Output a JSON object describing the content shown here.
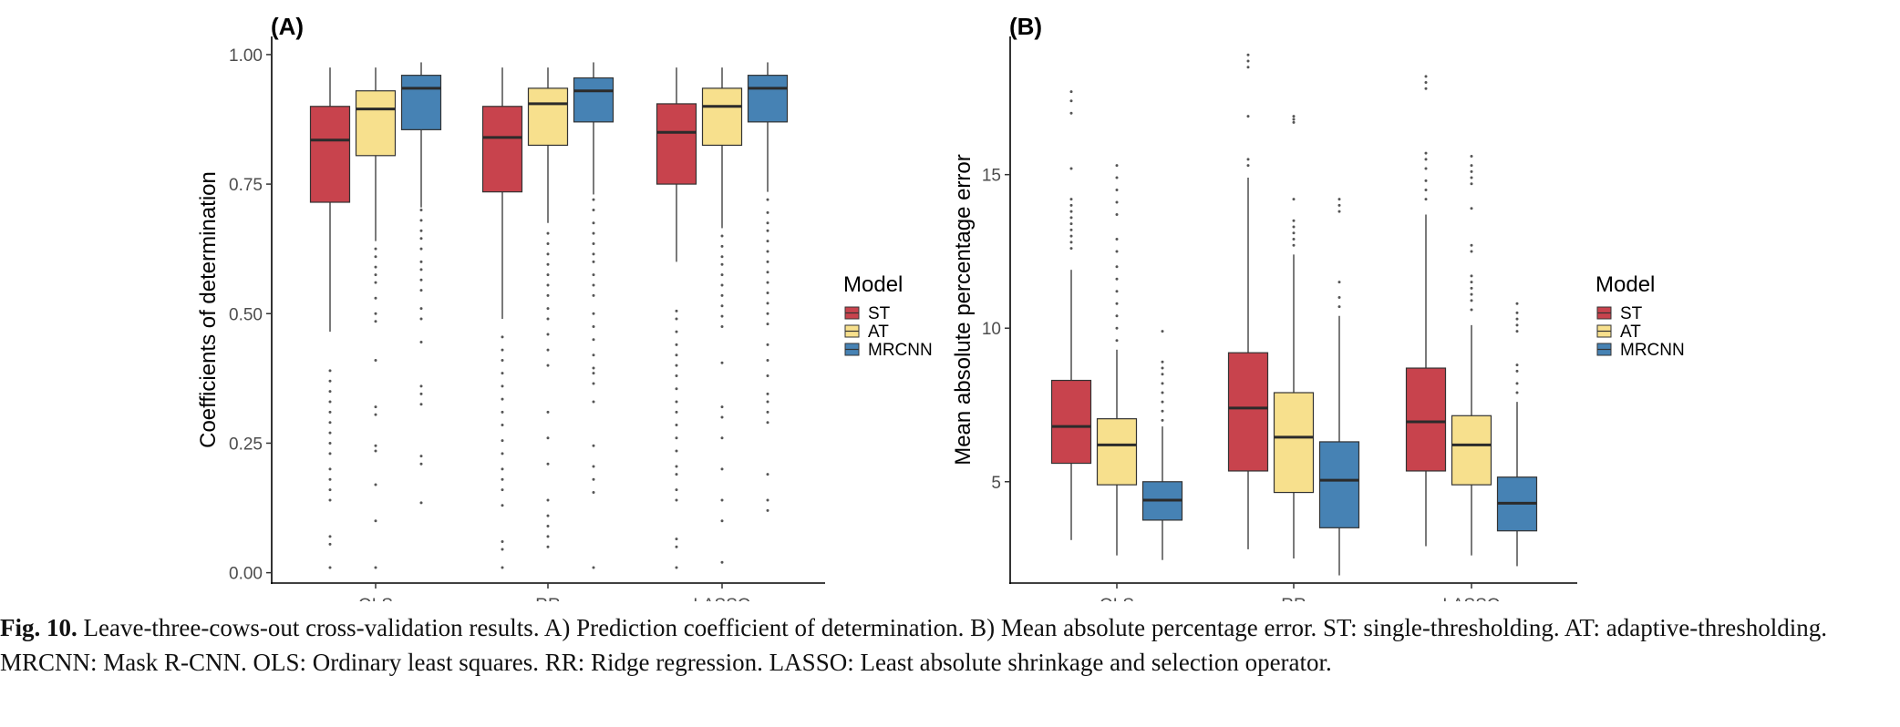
{
  "colors": {
    "ST": "#c8434d",
    "AT": "#f7e08d",
    "MRCNN": "#4682b4",
    "median": "#2b2b2b",
    "whisker": "#333333",
    "outlier": "#555555"
  },
  "legend": {
    "title": "Model",
    "items": [
      "ST",
      "AT",
      "MRCNN"
    ]
  },
  "caption": {
    "label": "Fig. 10.",
    "text": "Leave-three-cows-out cross-validation results. A) Prediction coefficient of determination. B) Mean absolute percentage error. ST: single-thresholding. AT: adaptive-thresholding. MRCNN: Mask R-CNN. OLS: Ordinary least squares. RR: Ridge regression. LASSO: Least absolute shrinkage and selection operator."
  },
  "chart_data": [
    {
      "type": "box",
      "panel_label": "(A)",
      "ylabel": "Coefficients of determination",
      "xlabel": "",
      "categories": [
        "OLS",
        "RR",
        "LASSO"
      ],
      "ylim": [
        -0.02,
        1.035
      ],
      "yticks": [
        0.0,
        0.25,
        0.5,
        0.75,
        1.0
      ],
      "ytick_labels": [
        "0.00",
        "0.25",
        "0.50",
        "0.75",
        "1.00"
      ],
      "grid": false,
      "legend_position": "right",
      "series": [
        {
          "name": "ST",
          "boxes": [
            {
              "category": "OLS",
              "low": 0.465,
              "q1": 0.715,
              "median": 0.835,
              "q3": 0.9,
              "high": 0.975,
              "outliers": [
                0.39,
                0.37,
                0.35,
                0.33,
                0.31,
                0.29,
                0.27,
                0.25,
                0.23,
                0.2,
                0.18,
                0.16,
                0.14,
                0.07,
                0.055,
                0.01
              ]
            },
            {
              "category": "RR",
              "low": 0.49,
              "q1": 0.735,
              "median": 0.84,
              "q3": 0.9,
              "high": 0.975,
              "outliers": [
                0.455,
                0.43,
                0.41,
                0.385,
                0.36,
                0.335,
                0.31,
                0.285,
                0.255,
                0.23,
                0.2,
                0.18,
                0.16,
                0.13,
                0.06,
                0.045,
                0.01
              ]
            },
            {
              "category": "LASSO",
              "low": 0.6,
              "q1": 0.75,
              "median": 0.85,
              "q3": 0.905,
              "high": 0.975,
              "outliers": [
                0.505,
                0.49,
                0.465,
                0.44,
                0.42,
                0.4,
                0.38,
                0.355,
                0.33,
                0.31,
                0.285,
                0.26,
                0.235,
                0.205,
                0.19,
                0.16,
                0.14,
                0.065,
                0.05,
                0.01
              ]
            }
          ]
        },
        {
          "name": "AT",
          "boxes": [
            {
              "category": "OLS",
              "low": 0.64,
              "q1": 0.805,
              "median": 0.895,
              "q3": 0.93,
              "high": 0.975,
              "outliers": [
                0.625,
                0.61,
                0.59,
                0.575,
                0.56,
                0.53,
                0.5,
                0.485,
                0.41,
                0.32,
                0.305,
                0.245,
                0.235,
                0.17,
                0.1,
                0.01
              ]
            },
            {
              "category": "RR",
              "low": 0.675,
              "q1": 0.825,
              "median": 0.905,
              "q3": 0.935,
              "high": 0.975,
              "outliers": [
                0.655,
                0.635,
                0.615,
                0.595,
                0.575,
                0.555,
                0.535,
                0.51,
                0.49,
                0.46,
                0.43,
                0.4,
                0.31,
                0.26,
                0.21,
                0.14,
                0.11,
                0.09,
                0.07,
                0.05
              ]
            },
            {
              "category": "LASSO",
              "low": 0.665,
              "q1": 0.825,
              "median": 0.9,
              "q3": 0.935,
              "high": 0.975,
              "outliers": [
                0.65,
                0.63,
                0.61,
                0.595,
                0.575,
                0.555,
                0.535,
                0.515,
                0.495,
                0.475,
                0.405,
                0.32,
                0.3,
                0.26,
                0.2,
                0.14,
                0.1,
                0.02
              ]
            }
          ]
        },
        {
          "name": "MRCNN",
          "boxes": [
            {
              "category": "OLS",
              "low": 0.705,
              "q1": 0.855,
              "median": 0.935,
              "q3": 0.96,
              "high": 0.985,
              "outliers": [
                0.7,
                0.68,
                0.66,
                0.645,
                0.625,
                0.6,
                0.585,
                0.565,
                0.545,
                0.51,
                0.49,
                0.445,
                0.36,
                0.345,
                0.325,
                0.225,
                0.21,
                0.135
              ]
            },
            {
              "category": "RR",
              "low": 0.73,
              "q1": 0.87,
              "median": 0.93,
              "q3": 0.955,
              "high": 0.985,
              "outliers": [
                0.72,
                0.7,
                0.675,
                0.655,
                0.635,
                0.615,
                0.6,
                0.575,
                0.555,
                0.535,
                0.5,
                0.475,
                0.45,
                0.42,
                0.395,
                0.385,
                0.365,
                0.33,
                0.245,
                0.205,
                0.18,
                0.155,
                0.01
              ]
            },
            {
              "category": "LASSO",
              "low": 0.735,
              "q1": 0.87,
              "median": 0.935,
              "q3": 0.96,
              "high": 0.985,
              "outliers": [
                0.72,
                0.695,
                0.675,
                0.66,
                0.64,
                0.62,
                0.6,
                0.58,
                0.56,
                0.54,
                0.52,
                0.5,
                0.48,
                0.44,
                0.41,
                0.38,
                0.345,
                0.33,
                0.31,
                0.29,
                0.19,
                0.14,
                0.12
              ]
            }
          ]
        }
      ]
    },
    {
      "type": "box",
      "panel_label": "(B)",
      "ylabel": "Mean absolute percentage error",
      "xlabel": "",
      "categories": [
        "OLS",
        "RR",
        "LASSO"
      ],
      "ylim": [
        1.7,
        19.5
      ],
      "yticks": [
        5,
        10,
        15
      ],
      "ytick_labels": [
        "5",
        "10",
        "15"
      ],
      "grid": false,
      "legend_position": "right",
      "series": [
        {
          "name": "ST",
          "boxes": [
            {
              "category": "OLS",
              "low": 3.1,
              "q1": 5.6,
              "median": 6.8,
              "q3": 8.3,
              "high": 11.9,
              "outliers": [
                12.6,
                12.8,
                13.0,
                13.2,
                13.4,
                13.6,
                13.8,
                14.0,
                14.2,
                15.2,
                17.0,
                17.4,
                17.7
              ]
            },
            {
              "category": "RR",
              "low": 2.8,
              "q1": 5.35,
              "median": 7.4,
              "q3": 9.2,
              "high": 14.9,
              "outliers": [
                15.3,
                15.5,
                16.9,
                18.5,
                18.7,
                18.9
              ]
            },
            {
              "category": "LASSO",
              "low": 2.9,
              "q1": 5.35,
              "median": 6.95,
              "q3": 8.7,
              "high": 13.7,
              "outliers": [
                14.2,
                14.5,
                14.8,
                15.2,
                15.5,
                15.7,
                17.8,
                18.0,
                18.2
              ]
            }
          ]
        },
        {
          "name": "AT",
          "boxes": [
            {
              "category": "OLS",
              "low": 2.6,
              "q1": 4.9,
              "median": 6.2,
              "q3": 7.05,
              "high": 9.3,
              "outliers": [
                9.6,
                10.0,
                10.4,
                10.8,
                11.2,
                11.6,
                12.0,
                12.5,
                12.9,
                13.7,
                14.1,
                14.5,
                14.9,
                15.3
              ]
            },
            {
              "category": "RR",
              "low": 2.5,
              "q1": 4.65,
              "median": 6.45,
              "q3": 7.9,
              "high": 12.4,
              "outliers": [
                12.7,
                12.9,
                13.1,
                13.3,
                13.5,
                14.2,
                16.7,
                16.8,
                16.9
              ]
            },
            {
              "category": "LASSO",
              "low": 2.6,
              "q1": 4.9,
              "median": 6.2,
              "q3": 7.15,
              "high": 10.1,
              "outliers": [
                10.6,
                10.9,
                11.1,
                11.3,
                11.5,
                11.7,
                12.5,
                12.7,
                13.9,
                14.7,
                14.9,
                15.1,
                15.3,
                15.6
              ]
            }
          ]
        },
        {
          "name": "MRCNN",
          "boxes": [
            {
              "category": "OLS",
              "low": 2.45,
              "q1": 3.75,
              "median": 4.4,
              "q3": 5.0,
              "high": 6.8,
              "outliers": [
                7.0,
                7.3,
                7.6,
                7.9,
                8.2,
                8.5,
                8.7,
                8.9,
                9.9
              ]
            },
            {
              "category": "RR",
              "low": 1.95,
              "q1": 3.5,
              "median": 5.05,
              "q3": 6.3,
              "high": 10.4,
              "outliers": [
                10.7,
                11.0,
                11.5,
                13.8,
                14.0,
                14.2
              ]
            },
            {
              "category": "LASSO",
              "low": 2.25,
              "q1": 3.4,
              "median": 4.3,
              "q3": 5.15,
              "high": 7.6,
              "outliers": [
                7.9,
                8.2,
                8.6,
                8.8,
                9.9,
                10.1,
                10.3,
                10.5,
                10.8
              ]
            }
          ]
        }
      ]
    }
  ]
}
